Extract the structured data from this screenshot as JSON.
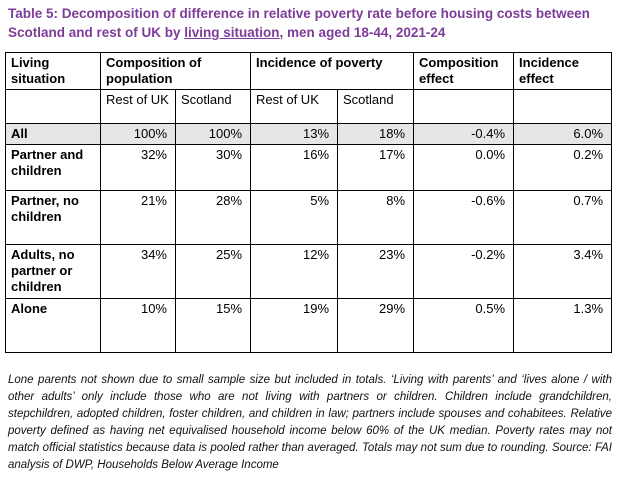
{
  "title": {
    "prefix": "Table 5: Decomposition of difference in relative poverty rate before housing costs between Scotland and rest of UK by ",
    "link": "living situation",
    "suffix": ", men aged 18-44, 2021-24"
  },
  "headers": {
    "living": "Living situation",
    "composition": "Composition of population",
    "incidence": "Incidence of poverty",
    "comp_effect": "Composition effect",
    "inc_effect": "Incidence effect",
    "rest": "Rest of UK",
    "scotland": "Scotland"
  },
  "rows": [
    {
      "label": "All",
      "values": [
        "100%",
        "100%",
        "13%",
        "18%",
        "-0.4%",
        "6.0%"
      ]
    },
    {
      "label": "Partner and children",
      "values": [
        "32%",
        "30%",
        "16%",
        "17%",
        "0.0%",
        "0.2%"
      ]
    },
    {
      "label": "Partner, no children",
      "values": [
        "21%",
        "28%",
        "5%",
        "8%",
        "-0.6%",
        "0.7%"
      ]
    },
    {
      "label": "Adults, no partner or children",
      "values": [
        "34%",
        "25%",
        "12%",
        "23%",
        "-0.2%",
        "3.4%"
      ]
    },
    {
      "label": "Alone",
      "values": [
        "10%",
        "15%",
        "19%",
        "29%",
        "0.5%",
        "1.3%"
      ]
    }
  ],
  "notes": "Lone parents not shown due to small sample size but included in totals. ‘Living with parents’ and ‘lives alone / with other adults’ only include those who are not living with partners or children. Children include grandchildren, stepchildren, adopted children, foster children, and children in law; partners include spouses and cohabitees. Relative poverty defined as having net equivalised household income below 60% of the UK median. Poverty rates may not match official statistics because data is pooled rather than averaged. Totals may not sum due to rounding. Source: FAI analysis of DWP, Households Below Average Income"
}
